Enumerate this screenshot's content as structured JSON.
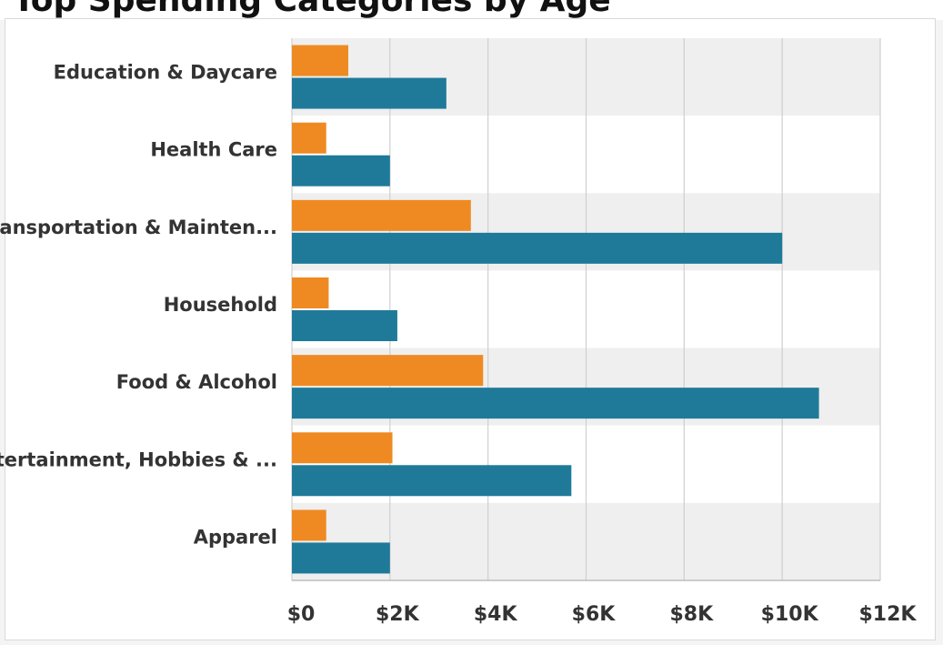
{
  "header": {
    "title": "Top Spending Categories by Age"
  },
  "colors": {
    "series_a": "#ef8a22",
    "series_b": "#1f7a99",
    "band": "#efefef",
    "grid": "#cfcfcf",
    "label": "#333333"
  },
  "chart_data": {
    "type": "bar",
    "orientation": "horizontal",
    "title": "Top Spending Categories by Age",
    "xlabel": "",
    "ylabel": "",
    "categories": [
      "Education & Daycare",
      "Health Care",
      "Transportation & Mainten...",
      "Household",
      "Food & Alcohol",
      "Entertainment, Hobbies & ...",
      "Apparel"
    ],
    "series": [
      {
        "values": [
          1150,
          700,
          3650,
          750,
          3900,
          2050,
          700
        ]
      },
      {
        "values": [
          3150,
          2000,
          10000,
          2150,
          10750,
          5700,
          2000
        ]
      }
    ],
    "x_ticks": [
      "$0",
      "$2K",
      "$4K",
      "$6K",
      "$8K",
      "$10K",
      "$12K"
    ],
    "xlim": [
      0,
      12000
    ],
    "grid": true,
    "legend": "none"
  }
}
